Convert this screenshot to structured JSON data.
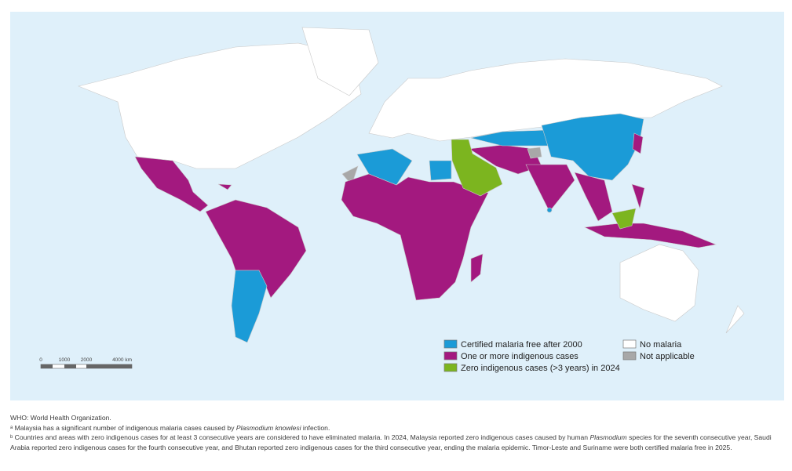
{
  "legend": [
    {
      "label": "Certified malaria free after 2000",
      "color": "#1b9bd7"
    },
    {
      "label": "One or more indigenous cases",
      "color": "#a3197f"
    },
    {
      "label": "Zero indigenous cases (>3 years) in 2024",
      "color": "#7cb51f"
    },
    {
      "label": "No malaria",
      "color": "#ffffff"
    },
    {
      "label": "Not applicable",
      "color": "#a8a8a8"
    }
  ],
  "scale": {
    "labels": [
      "0",
      "1000",
      "2000",
      "4000 km"
    ]
  },
  "notes": [
    {
      "segments": [
        {
          "text": "WHO: World Health Organization."
        }
      ]
    },
    {
      "segments": [
        {
          "text": "ᵃ Malaysia has a significant number of indigenous malaria cases caused by "
        },
        {
          "text": "Plasmodium knowlesi",
          "italic": true
        },
        {
          "text": " infection."
        }
      ]
    },
    {
      "segments": [
        {
          "text": "ᵇ Countries and areas with zero indigenous cases for at least 3 consecutive years are considered to have eliminated malaria. In 2024, Malaysia reported zero indigenous cases caused by human "
        },
        {
          "text": "Plasmodium",
          "italic": true
        },
        {
          "text": " species for the seventh consecutive year, Saudi Arabia reported zero indigenous cases for the fourth consecutive year, and Bhutan reported zero indigenous cases for the third consecutive year, ending the malaria epidemic. Timor-Leste and Suriname were both certified malaria free in 2025."
        }
      ]
    }
  ]
}
